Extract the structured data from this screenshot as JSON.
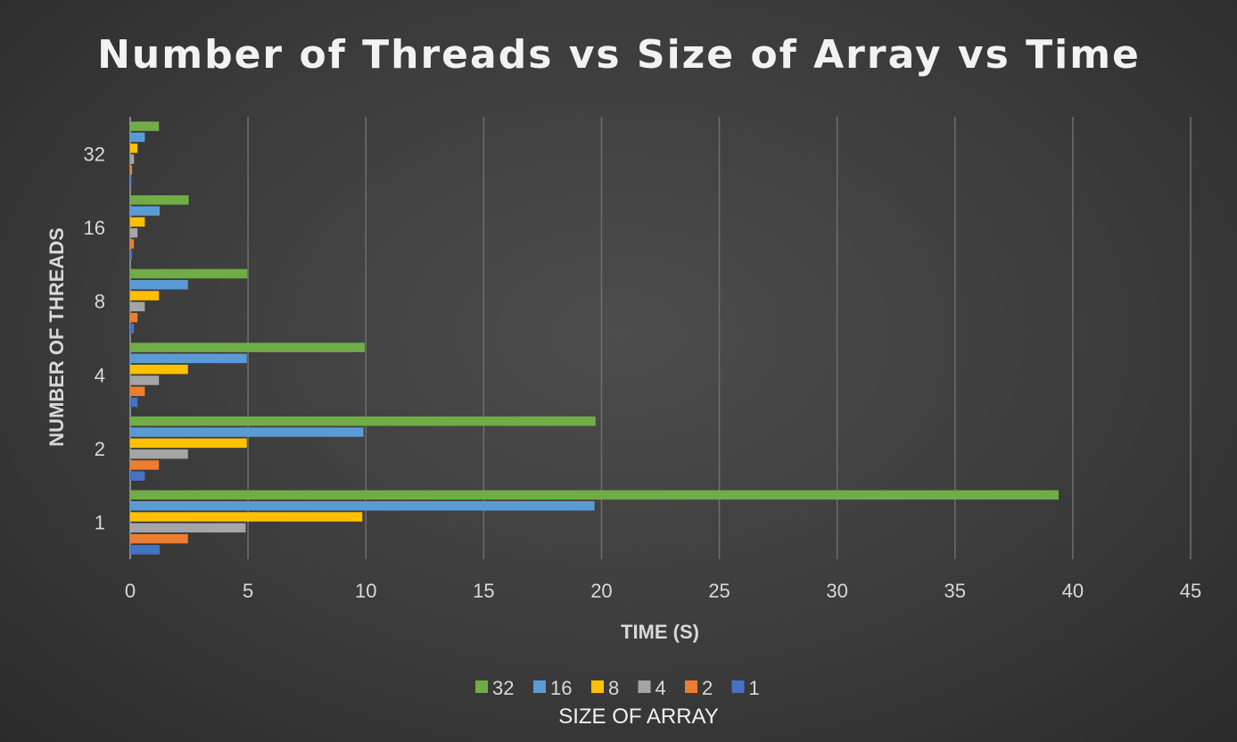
{
  "chart_data": {
    "type": "bar",
    "orientation": "horizontal",
    "title": "Number of Threads vs Size of Array vs Time",
    "xlabel": "TIME (S)",
    "ylabel": "NUMBER OF THREADS",
    "legend_title": "SIZE OF ARRAY",
    "legend_position": "bottom",
    "grid": true,
    "xlim": [
      0,
      45
    ],
    "xticks": [
      "0",
      "5",
      "10",
      "15",
      "20",
      "25",
      "30",
      "35",
      "40",
      "45"
    ],
    "categories": [
      "1",
      "2",
      "4",
      "8",
      "16",
      "32"
    ],
    "series": [
      {
        "name": "1",
        "color": "#4472c4",
        "values": [
          1.25,
          0.62,
          0.31,
          0.16,
          0.08,
          0.04
        ]
      },
      {
        "name": "2",
        "color": "#ed7d31",
        "values": [
          2.45,
          1.22,
          0.62,
          0.31,
          0.16,
          0.08
        ]
      },
      {
        "name": "4",
        "color": "#a5a5a5",
        "values": [
          4.9,
          2.45,
          1.22,
          0.62,
          0.31,
          0.16
        ]
      },
      {
        "name": "8",
        "color": "#ffc000",
        "values": [
          9.85,
          4.95,
          2.45,
          1.22,
          0.62,
          0.31
        ]
      },
      {
        "name": "16",
        "color": "#5b9bd5",
        "values": [
          19.7,
          9.9,
          4.95,
          2.45,
          1.25,
          0.62
        ]
      },
      {
        "name": "32",
        "color": "#70ad47",
        "values": [
          39.4,
          19.75,
          9.95,
          4.97,
          2.48,
          1.22
        ]
      }
    ]
  }
}
